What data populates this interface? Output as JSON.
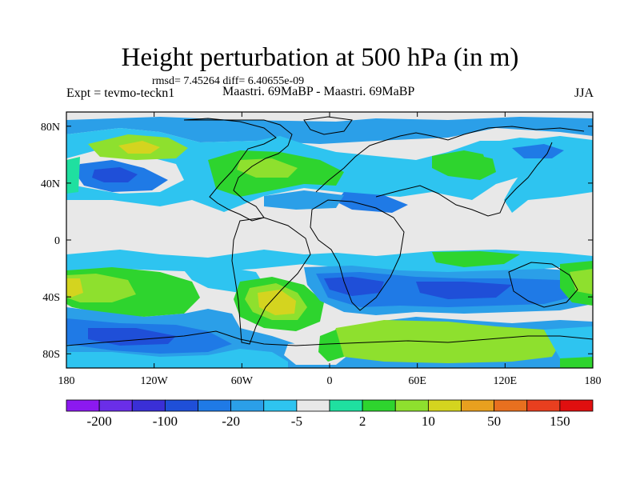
{
  "figure": {
    "title": "Height perturbation at 500 hPa (in m)",
    "stats": "rmsd= 7.45264 diff= 6.40655e-09",
    "left_label": "Expt = tevmo-teckn1",
    "center_label": "Maastri.  69MaBP - Maastri.  69MaBP",
    "right_label": "JJA"
  },
  "axes": {
    "x_ticks": [
      "180",
      "120W",
      "60W",
      "0",
      "60E",
      "120E",
      "180"
    ],
    "y_ticks": [
      "80N",
      "40N",
      "0",
      "40S",
      "80S"
    ]
  },
  "colorbar": {
    "colors": [
      "#8c19f0",
      "#6a2ee8",
      "#3a2fd6",
      "#1f4fd8",
      "#1f7ae6",
      "#2b9fe8",
      "#2ec4f0",
      "#e8e8e8",
      "#1fe0a0",
      "#2ed42e",
      "#8ee02e",
      "#d4d41f",
      "#e8a01f",
      "#e8701f",
      "#e83f1f",
      "#e00f0f"
    ],
    "labels": [
      "-200",
      "-100",
      "-20",
      "-5",
      "2",
      "10",
      "50",
      "150"
    ]
  },
  "chart_data": {
    "type": "heatmap",
    "title": "Height perturbation at 500 hPa (in m)",
    "xlim": [
      -180,
      180
    ],
    "ylim": [
      -90,
      90
    ],
    "x_ticks": [
      -180,
      -120,
      -60,
      0,
      60,
      120,
      180
    ],
    "y_ticks": [
      80,
      40,
      0,
      -40,
      -80
    ],
    "color_levels": [
      -200,
      -150,
      -100,
      -50,
      -20,
      -10,
      -5,
      -2,
      2,
      5,
      10,
      20,
      50,
      100,
      150,
      200
    ]
  }
}
